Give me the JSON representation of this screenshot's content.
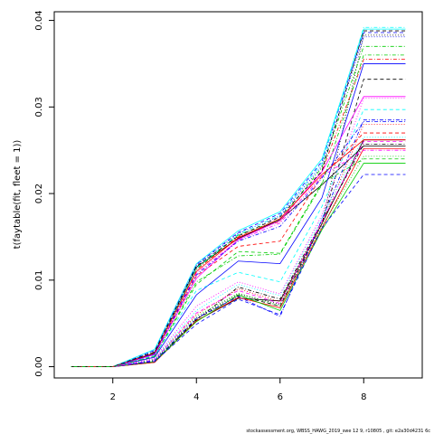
{
  "chart_data": {
    "type": "line",
    "title": "",
    "xlabel": "",
    "ylabel": "t(faytable(fit, fleet = 1))",
    "xlim": [
      0.6,
      9.4
    ],
    "ylim": [
      -0.0013,
      0.041
    ],
    "x_ticks": [
      2,
      4,
      6,
      8
    ],
    "y_ticks": [
      0.0,
      0.01,
      0.02,
      0.03,
      0.04
    ],
    "y_tick_labels": [
      "0.00",
      "0.01",
      "0.02",
      "0.03",
      "0.04"
    ],
    "grid": false,
    "x": [
      1,
      2,
      3,
      4,
      5,
      6,
      7,
      8,
      9
    ],
    "series": [
      {
        "color": "#000000",
        "dash": "solid",
        "values": [
          0,
          0,
          0.0005,
          0.0053,
          0.0079,
          0.0076,
          0.0165,
          0.0262,
          0.0262
        ]
      },
      {
        "color": "#000000",
        "dash": "dashed",
        "values": [
          0,
          0,
          0.0006,
          0.0055,
          0.0082,
          0.007,
          0.0165,
          0.0332,
          0.0332
        ]
      },
      {
        "color": "#000000",
        "dash": "dotted",
        "values": [
          0,
          0,
          0.0007,
          0.0056,
          0.0084,
          0.0072,
          0.0165,
          0.0383,
          0.0383
        ]
      },
      {
        "color": "#000000",
        "dash": "dotdash",
        "values": [
          0,
          0,
          0.0006,
          0.0054,
          0.0092,
          0.0078,
          0.0168,
          0.0257,
          0.0257
        ]
      },
      {
        "color": "#000000",
        "dash": "solid",
        "values": [
          0,
          0,
          0.0015,
          0.0115,
          0.0148,
          0.017,
          0.021,
          0.0255,
          0.0255
        ]
      },
      {
        "color": "#ff0000",
        "dash": "solid",
        "values": [
          0,
          0,
          0.0005,
          0.0053,
          0.008,
          0.0068,
          0.016,
          0.0252,
          0.0252
        ]
      },
      {
        "color": "#ff0000",
        "dash": "dashed",
        "values": [
          0,
          0,
          0.0014,
          0.0105,
          0.0139,
          0.0145,
          0.022,
          0.027,
          0.027
        ]
      },
      {
        "color": "#ff0000",
        "dash": "dotdash",
        "values": [
          0,
          0,
          0.0016,
          0.0112,
          0.015,
          0.0168,
          0.0225,
          0.0355,
          0.0355
        ]
      },
      {
        "color": "#ff0000",
        "dash": "dotted",
        "values": [
          0,
          0,
          0.0009,
          0.006,
          0.009,
          0.0075,
          0.0165,
          0.028,
          0.028
        ]
      },
      {
        "color": "#00cd00",
        "dash": "solid",
        "values": [
          0,
          0,
          0.0006,
          0.0052,
          0.0083,
          0.0065,
          0.0158,
          0.0235,
          0.0235
        ]
      },
      {
        "color": "#00cd00",
        "dash": "dashed",
        "values": [
          0,
          0,
          0.0012,
          0.0095,
          0.0133,
          0.0131,
          0.0212,
          0.024,
          0.024
        ]
      },
      {
        "color": "#00cd00",
        "dash": "dotdash",
        "values": [
          0,
          0,
          0.0017,
          0.0113,
          0.0152,
          0.017,
          0.023,
          0.037,
          0.037
        ]
      },
      {
        "color": "#00cd00",
        "dash": "dotted",
        "values": [
          0,
          0,
          0.0008,
          0.0058,
          0.0085,
          0.007,
          0.0162,
          0.0243,
          0.0243
        ]
      },
      {
        "color": "#0000ff",
        "dash": "solid",
        "values": [
          0,
          0,
          0.0011,
          0.0083,
          0.0122,
          0.0119,
          0.0195,
          0.035,
          0.035
        ]
      },
      {
        "color": "#0000ff",
        "dash": "dashed",
        "values": [
          0,
          0,
          0.0019,
          0.0118,
          0.0155,
          0.0177,
          0.0237,
          0.0386,
          0.0386
        ]
      },
      {
        "color": "#0000ff",
        "dash": "dotted",
        "values": [
          0,
          0,
          0.0018,
          0.0117,
          0.0154,
          0.0174,
          0.0232,
          0.0381,
          0.0381
        ]
      },
      {
        "color": "#0000ff",
        "dash": "dotdash",
        "values": [
          0,
          0,
          0.0007,
          0.0056,
          0.0081,
          0.0058,
          0.017,
          0.0285,
          0.0285
        ]
      },
      {
        "color": "#0000ff",
        "dash": "dashed",
        "values": [
          0,
          0,
          0.0006,
          0.0049,
          0.0078,
          0.006,
          0.016,
          0.0222,
          0.0222
        ]
      },
      {
        "color": "#00ffff",
        "dash": "solid",
        "values": [
          0,
          0,
          0.002,
          0.0119,
          0.0157,
          0.0179,
          0.024,
          0.039,
          0.039
        ]
      },
      {
        "color": "#00ffff",
        "dash": "dashed",
        "values": [
          0,
          0,
          0.0013,
          0.0088,
          0.0109,
          0.0098,
          0.0185,
          0.0297,
          0.0297
        ]
      },
      {
        "color": "#00ffff",
        "dash": "dotted",
        "values": [
          0,
          0,
          0.0009,
          0.0065,
          0.0095,
          0.0082,
          0.0172,
          0.0265,
          0.0265
        ]
      },
      {
        "color": "#00ffff",
        "dash": "dotdash",
        "values": [
          0,
          0,
          0.0016,
          0.0114,
          0.0153,
          0.0175,
          0.0235,
          0.0392,
          0.0392
        ]
      },
      {
        "color": "#ff00ff",
        "dash": "solid",
        "values": [
          0,
          0,
          0.0014,
          0.0102,
          0.0147,
          0.0169,
          0.0225,
          0.0312,
          0.0312
        ]
      },
      {
        "color": "#ff00ff",
        "dash": "dashed",
        "values": [
          0,
          0,
          0.0008,
          0.0062,
          0.0088,
          0.0073,
          0.0168,
          0.026,
          0.026
        ]
      },
      {
        "color": "#ff00ff",
        "dash": "dotted",
        "values": [
          0,
          0,
          0.001,
          0.007,
          0.0098,
          0.0084,
          0.0175,
          0.031,
          0.031
        ]
      },
      {
        "color": "#ff00ff",
        "dash": "dotdash",
        "values": [
          0,
          0,
          0.0015,
          0.0108,
          0.0146,
          0.0166,
          0.022,
          0.025,
          0.025
        ]
      },
      {
        "color": "#ff0000",
        "dash": "solid",
        "values": [
          0,
          0,
          0.0016,
          0.011,
          0.0149,
          0.0171,
          0.0222,
          0.0262,
          0.0262
        ]
      },
      {
        "color": "#000000",
        "dash": "dashed",
        "values": [
          0,
          0,
          0.0017,
          0.0116,
          0.0151,
          0.0173,
          0.0226,
          0.0388,
          0.0388
        ]
      },
      {
        "color": "#0000ff",
        "dash": "dotdash",
        "values": [
          0,
          0,
          0.0015,
          0.0106,
          0.0145,
          0.0162,
          0.0218,
          0.0283,
          0.0283
        ]
      },
      {
        "color": "#00cd00",
        "dash": "dotdash",
        "values": [
          0,
          0,
          0.0012,
          0.0098,
          0.0128,
          0.013,
          0.021,
          0.036,
          0.036
        ]
      }
    ]
  },
  "footer": "stockassessment.org, WBSS_HAWG_2019_swe 12 9, r10805 , git: e2a30d4231 6c"
}
